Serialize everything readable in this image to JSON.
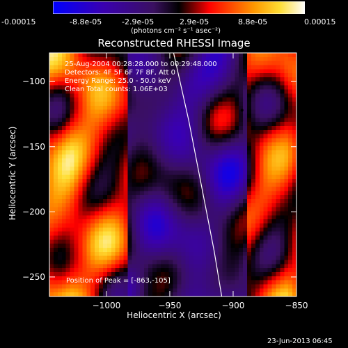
{
  "colorbar": {
    "tick_labels": [
      "-0.00015",
      "-8.8e-05",
      "-2.9e-05",
      "2.9e-05",
      "8.8e-05",
      "0.00015"
    ],
    "units": "(photons cm⁻² s⁻¹ asec⁻²)",
    "colors": [
      "#0000ff",
      "#4b0082",
      "#000000",
      "#ff3300",
      "#ffaa00",
      "#ffffff"
    ]
  },
  "chart_data": {
    "type": "heatmap",
    "title": "Reconstructed RHESSI Image",
    "xlabel": "Heliocentric X (arcsec)",
    "ylabel": "Heliocentric Y (arcsec)",
    "xlim": [
      -1045,
      -850
    ],
    "ylim": [
      -265,
      -78
    ],
    "x_ticks": [
      -1000,
      -950,
      -900,
      -850
    ],
    "y_ticks": [
      -100,
      -150,
      -200,
      -250
    ],
    "annotations": [
      "25-Aug-2004 00:28:28.000 to 00:29:48.000",
      "Detectors: 4F 5F 6F 7F 8F, Att 0",
      "Energy Range: 25.0 - 50.0 keV",
      "Clean    Total counts: 1.06E+03"
    ],
    "peak_label": "Position of Peak = [-863,-105]",
    "limb_curve": [
      [
        -947,
        -78
      ],
      [
        -935,
        -130
      ],
      [
        -925,
        -180
      ],
      [
        -915,
        -230
      ],
      [
        -909,
        -265
      ]
    ],
    "color_range": [
      -0.00015,
      0.00015
    ]
  },
  "footer": {
    "timestamp": "23-Jun-2013 06:45"
  }
}
